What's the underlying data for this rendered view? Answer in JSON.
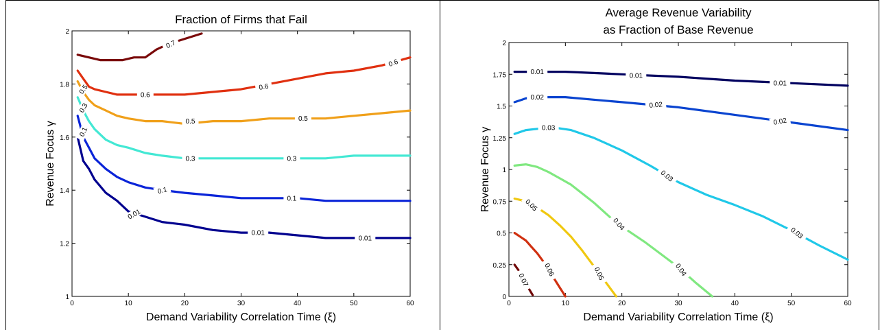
{
  "chart_data": [
    {
      "type": "line",
      "subtype": "contour",
      "title": [
        "Fraction of Firms that Fail"
      ],
      "xlabel": "Demand Variability Correlation Time (ξ)",
      "ylabel": "Revenue Focus γ",
      "xlim": [
        0,
        60
      ],
      "ylim": [
        1,
        2
      ],
      "xticks": [
        "0",
        "10",
        "20",
        "30",
        "40",
        "50",
        "60"
      ],
      "yticks": [
        "1",
        "1.2",
        "1.4",
        "1.6",
        "1.8",
        "2"
      ],
      "grid": false,
      "contours": [
        {
          "level": "0.01",
          "color": "#00008f",
          "x": [
            1,
            2,
            3,
            4,
            6,
            8,
            10,
            13,
            16,
            20,
            25,
            30,
            35,
            40,
            45,
            50,
            55,
            60
          ],
          "y": [
            1.6,
            1.51,
            1.48,
            1.44,
            1.39,
            1.36,
            1.32,
            1.3,
            1.28,
            1.27,
            1.25,
            1.24,
            1.24,
            1.23,
            1.22,
            1.22,
            1.22,
            1.22
          ],
          "labels": [
            {
              "x": 11,
              "y": 1.31,
              "a": -30
            },
            {
              "x": 33,
              "y": 1.24,
              "a": 0
            },
            {
              "x": 52,
              "y": 1.22,
              "a": 0
            }
          ]
        },
        {
          "level": "0.1",
          "color": "#0a24d8",
          "x": [
            1,
            2,
            3,
            4,
            6,
            8,
            10,
            13,
            16,
            20,
            25,
            30,
            35,
            40,
            45,
            50,
            55,
            60
          ],
          "y": [
            1.68,
            1.6,
            1.56,
            1.52,
            1.48,
            1.45,
            1.43,
            1.41,
            1.4,
            1.39,
            1.38,
            1.37,
            1.37,
            1.37,
            1.36,
            1.36,
            1.36,
            1.36
          ],
          "labels": [
            {
              "x": 2,
              "y": 1.62,
              "a": -65
            },
            {
              "x": 16,
              "y": 1.4,
              "a": -15
            },
            {
              "x": 39,
              "y": 1.37,
              "a": 0
            }
          ]
        },
        {
          "level": "0.3",
          "color": "#43e8d4",
          "x": [
            1,
            2,
            3,
            4,
            6,
            8,
            10,
            13,
            16,
            20,
            25,
            30,
            35,
            40,
            45,
            50,
            55,
            60
          ],
          "y": [
            1.75,
            1.7,
            1.66,
            1.63,
            1.59,
            1.57,
            1.56,
            1.54,
            1.53,
            1.52,
            1.52,
            1.52,
            1.52,
            1.52,
            1.52,
            1.53,
            1.53,
            1.53
          ],
          "labels": [
            {
              "x": 2,
              "y": 1.71,
              "a": -60
            },
            {
              "x": 21,
              "y": 1.52,
              "a": 0
            },
            {
              "x": 39,
              "y": 1.52,
              "a": 0
            }
          ]
        },
        {
          "level": "0.5",
          "color": "#f0a01a",
          "x": [
            1,
            2,
            3,
            4,
            6,
            8,
            10,
            13,
            16,
            20,
            25,
            30,
            35,
            40,
            45,
            50,
            55,
            60
          ],
          "y": [
            1.81,
            1.77,
            1.74,
            1.72,
            1.7,
            1.68,
            1.67,
            1.66,
            1.66,
            1.65,
            1.66,
            1.66,
            1.67,
            1.67,
            1.67,
            1.68,
            1.69,
            1.7
          ],
          "labels": [
            {
              "x": 2,
              "y": 1.78,
              "a": -55
            },
            {
              "x": 21,
              "y": 1.66,
              "a": 0
            },
            {
              "x": 41,
              "y": 1.67,
              "a": 0
            }
          ]
        },
        {
          "level": "0.6",
          "color": "#e03010",
          "x": [
            1,
            2,
            3,
            4,
            6,
            8,
            10,
            13,
            16,
            20,
            25,
            30,
            35,
            40,
            45,
            50,
            55,
            60
          ],
          "y": [
            1.85,
            1.82,
            1.79,
            1.78,
            1.77,
            1.76,
            1.76,
            1.76,
            1.76,
            1.76,
            1.77,
            1.78,
            1.8,
            1.82,
            1.84,
            1.85,
            1.87,
            1.9
          ],
          "labels": [
            {
              "x": 13,
              "y": 1.76,
              "a": 0
            },
            {
              "x": 34,
              "y": 1.79,
              "a": -10
            },
            {
              "x": 57,
              "y": 1.88,
              "a": -20
            }
          ]
        },
        {
          "level": "0.7",
          "color": "#7a0a0a",
          "x": [
            1,
            3,
            5,
            7,
            9,
            11,
            13,
            15,
            17,
            20,
            23
          ],
          "y": [
            1.91,
            1.9,
            1.89,
            1.89,
            1.89,
            1.9,
            1.9,
            1.93,
            1.95,
            1.97,
            1.99
          ],
          "labels": [
            {
              "x": 17.5,
              "y": 1.95,
              "a": -25
            }
          ]
        }
      ]
    },
    {
      "type": "line",
      "subtype": "contour",
      "title": [
        "Average Revenue Variability",
        "as Fraction of Base Revenue"
      ],
      "xlabel": "Demand Variability Correlation Time (ξ)",
      "ylabel": "Revenue Focus γ",
      "xlim": [
        0,
        60
      ],
      "ylim": [
        0,
        2
      ],
      "xticks": [
        "0",
        "10",
        "20",
        "30",
        "40",
        "50",
        "60"
      ],
      "yticks": [
        "0",
        "0.25",
        "0.5",
        "0.75",
        "1",
        "1.25",
        "1.5",
        "1.75",
        "2"
      ],
      "grid": false,
      "contours": [
        {
          "level": "0.01",
          "color": "#00005f",
          "x": [
            1,
            5,
            10,
            15,
            20,
            30,
            40,
            50,
            60
          ],
          "y": [
            1.77,
            1.77,
            1.77,
            1.76,
            1.75,
            1.73,
            1.7,
            1.68,
            1.66
          ],
          "labels": [
            {
              "x": 5,
              "y": 1.77,
              "a": 0
            },
            {
              "x": 22.5,
              "y": 1.74,
              "a": 0
            },
            {
              "x": 48,
              "y": 1.68,
              "a": 0
            }
          ]
        },
        {
          "level": "0.02",
          "color": "#0a44d0",
          "x": [
            1,
            3,
            5,
            8,
            10,
            15,
            20,
            30,
            40,
            50,
            60
          ],
          "y": [
            1.53,
            1.56,
            1.57,
            1.57,
            1.57,
            1.55,
            1.53,
            1.49,
            1.43,
            1.37,
            1.31
          ],
          "labels": [
            {
              "x": 5,
              "y": 1.57,
              "a": 0
            },
            {
              "x": 26,
              "y": 1.51,
              "a": -5
            },
            {
              "x": 48,
              "y": 1.38,
              "a": -10
            }
          ]
        },
        {
          "level": "0.03",
          "color": "#20c8e8",
          "x": [
            1,
            3,
            5,
            8,
            11,
            15,
            20,
            25,
            30,
            35,
            40,
            45,
            50,
            55,
            60
          ],
          "y": [
            1.28,
            1.31,
            1.32,
            1.33,
            1.31,
            1.25,
            1.15,
            1.03,
            0.9,
            0.8,
            0.72,
            0.63,
            0.52,
            0.4,
            0.29
          ],
          "labels": [
            {
              "x": 7,
              "y": 1.33,
              "a": 0
            },
            {
              "x": 28,
              "y": 0.95,
              "a": 40
            },
            {
              "x": 51,
              "y": 0.5,
              "a": 38
            }
          ]
        },
        {
          "level": "0.04",
          "color": "#80e880",
          "x": [
            1,
            3,
            5,
            7,
            9,
            11,
            13,
            15,
            18,
            21,
            24,
            27,
            30,
            33,
            36
          ],
          "y": [
            1.03,
            1.04,
            1.02,
            0.98,
            0.93,
            0.88,
            0.81,
            0.74,
            0.62,
            0.52,
            0.43,
            0.33,
            0.23,
            0.11,
            0.0
          ],
          "labels": [
            {
              "x": 19.5,
              "y": 0.57,
              "a": 50
            },
            {
              "x": 30.5,
              "y": 0.21,
              "a": 55
            }
          ]
        },
        {
          "level": "0.05",
          "color": "#f0c810",
          "x": [
            1,
            3,
            5,
            7,
            9,
            11,
            13,
            15,
            17,
            19
          ],
          "y": [
            0.77,
            0.75,
            0.7,
            0.64,
            0.56,
            0.47,
            0.36,
            0.24,
            0.12,
            0.0
          ],
          "labels": [
            {
              "x": 4,
              "y": 0.72,
              "a": 45
            },
            {
              "x": 16,
              "y": 0.18,
              "a": 65
            }
          ]
        },
        {
          "level": "0.06",
          "color": "#d03010",
          "x": [
            1,
            2,
            3,
            4,
            5,
            6,
            7,
            8,
            9,
            10
          ],
          "y": [
            0.5,
            0.47,
            0.44,
            0.39,
            0.34,
            0.28,
            0.21,
            0.14,
            0.07,
            0.0
          ],
          "labels": [
            {
              "x": 7.2,
              "y": 0.21,
              "a": 65
            }
          ]
        },
        {
          "level": "0.07",
          "color": "#700808",
          "x": [
            1,
            1.8,
            2.6,
            3.4,
            4.2
          ],
          "y": [
            0.25,
            0.2,
            0.13,
            0.07,
            0.01
          ],
          "labels": [
            {
              "x": 2.6,
              "y": 0.13,
              "a": 65
            }
          ]
        }
      ]
    }
  ]
}
